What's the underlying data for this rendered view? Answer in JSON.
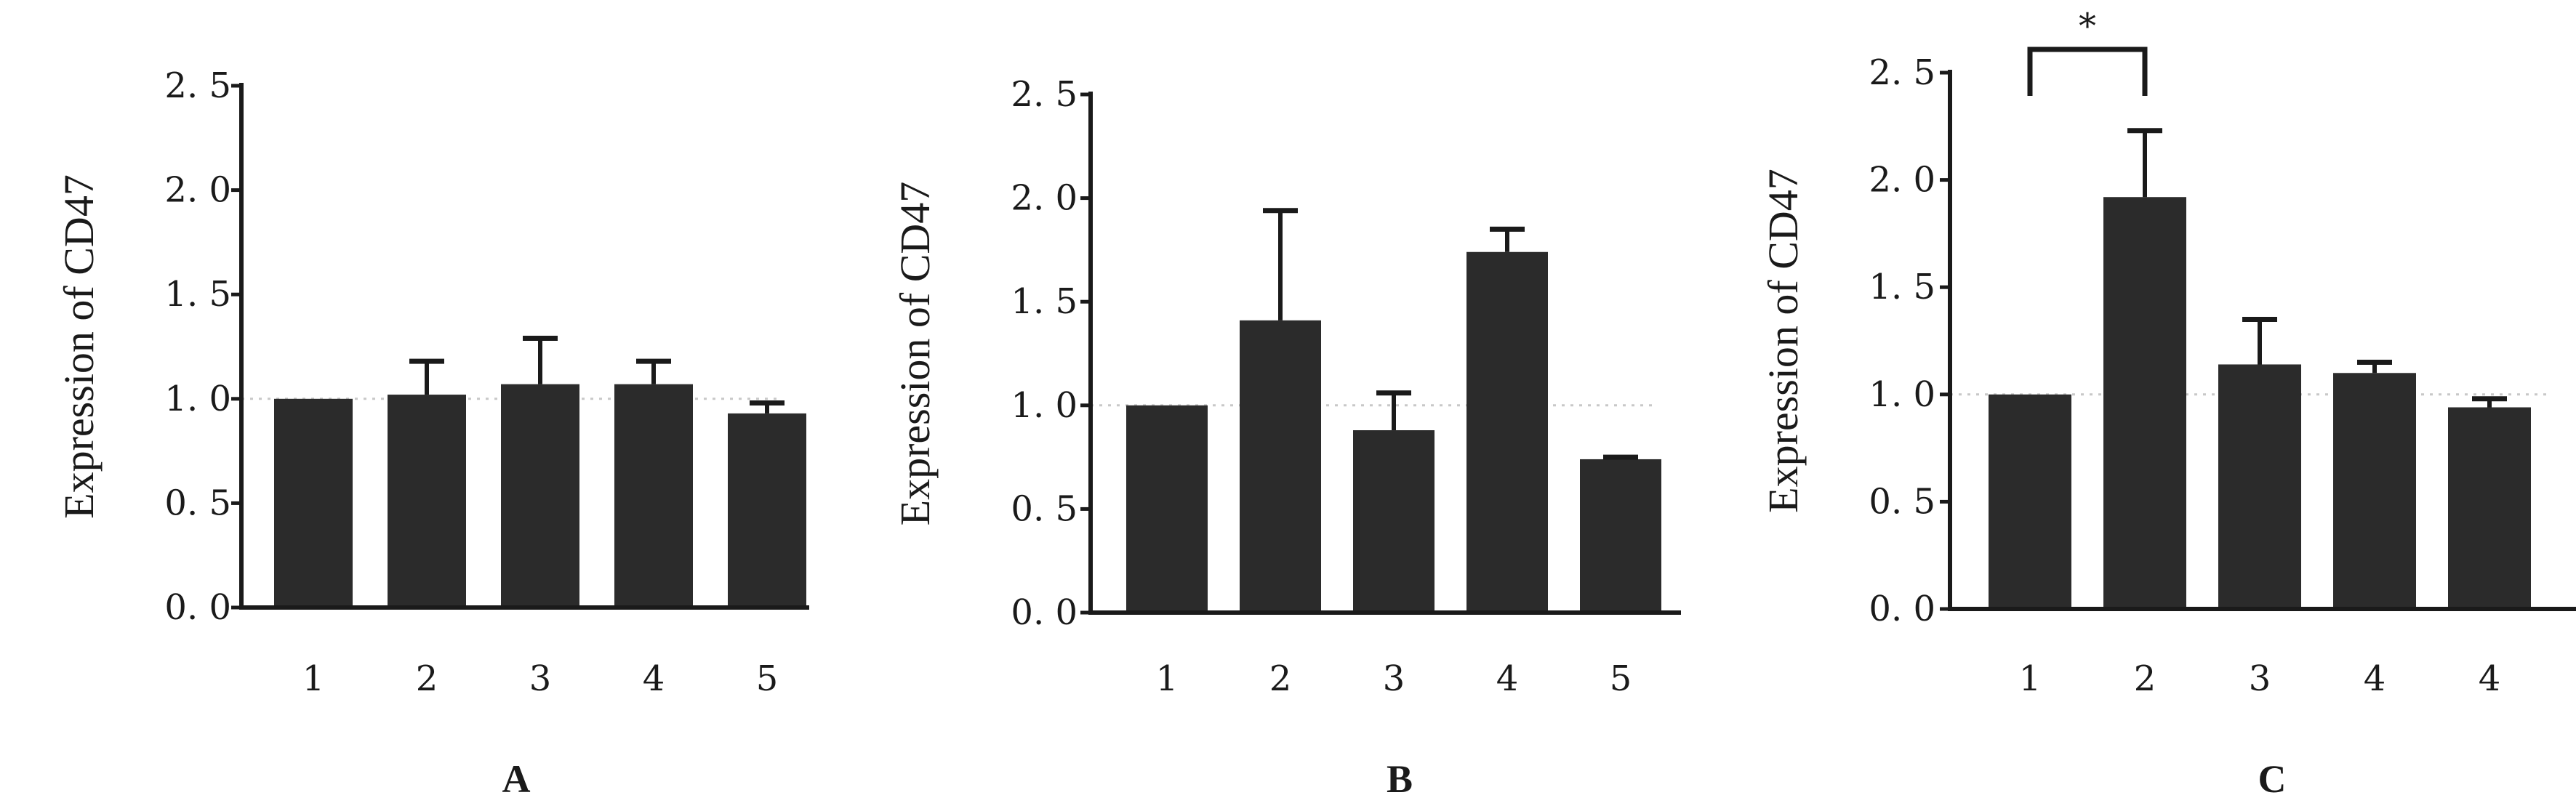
{
  "chart_data": [
    {
      "type": "bar",
      "panel_label": "A",
      "ylabel": "Expression of CD47",
      "ylim": [
        0,
        2.5
      ],
      "yticks": [
        "0. 0",
        "0. 5",
        "1. 0",
        "1. 5",
        "2. 0",
        "2. 5"
      ],
      "categories": [
        "1",
        "2",
        "3",
        "4",
        "5"
      ],
      "values": [
        1.0,
        1.02,
        1.07,
        1.07,
        0.93
      ],
      "error_upper": [
        0.0,
        0.16,
        0.22,
        0.11,
        0.05
      ],
      "bar_color": "#2b2b2b",
      "reference_line": 1.0,
      "grid": false,
      "significance": []
    },
    {
      "type": "bar",
      "panel_label": "B",
      "ylabel": "Expression of CD47",
      "ylim": [
        0,
        2.5
      ],
      "yticks": [
        "0. 0",
        "0. 5",
        "1. 0",
        "1. 5",
        "2. 0",
        "2. 5"
      ],
      "categories": [
        "1",
        "2",
        "3",
        "4",
        "5"
      ],
      "values": [
        1.0,
        1.41,
        0.88,
        1.74,
        0.74
      ],
      "error_upper": [
        0.0,
        0.53,
        0.18,
        0.11,
        0.01
      ],
      "bar_color": "#2b2b2b",
      "reference_line": 1.0,
      "grid": false,
      "significance": []
    },
    {
      "type": "bar",
      "panel_label": "C",
      "ylabel": "Expression of CD47",
      "ylim": [
        0,
        2.5
      ],
      "yticks": [
        "0. 0",
        "0. 5",
        "1. 0",
        "1. 5",
        "2. 0",
        "2. 5"
      ],
      "categories": [
        "1",
        "2",
        "3",
        "4",
        "4"
      ],
      "values": [
        1.0,
        1.92,
        1.14,
        1.1,
        0.94
      ],
      "error_upper": [
        0.0,
        0.31,
        0.21,
        0.05,
        0.04
      ],
      "bar_color": "#2b2b2b",
      "reference_line": 1.0,
      "grid": false,
      "significance": [
        {
          "from": 0,
          "to": 1,
          "label": "*"
        }
      ]
    }
  ]
}
